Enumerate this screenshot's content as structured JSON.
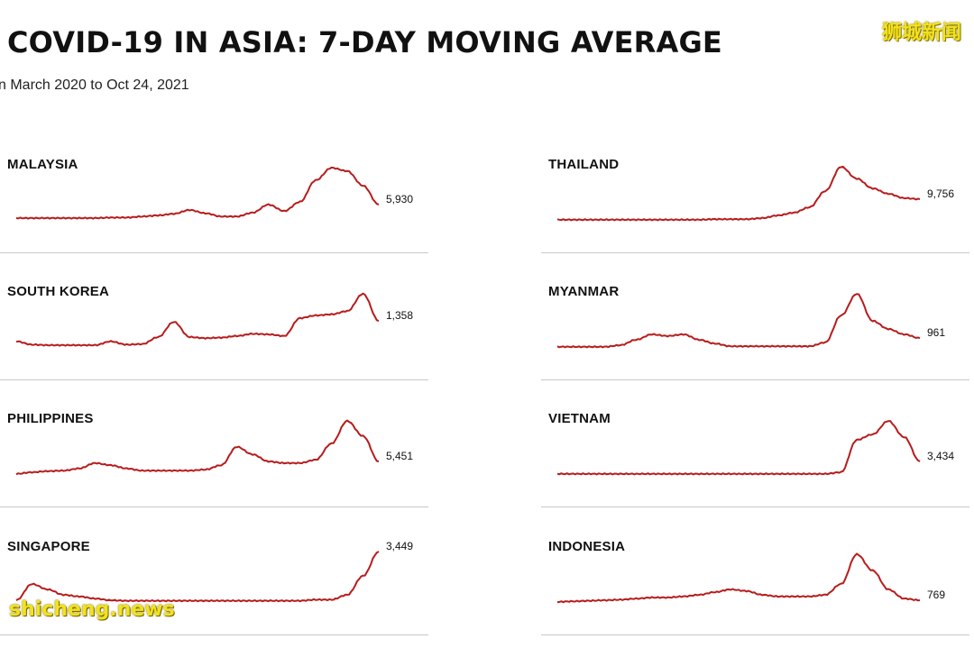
{
  "title": "COVID-19 IN ASIA: 7-DAY MOVING AVERAGE",
  "subtitle": "n March 2020 to Oct 24, 2021",
  "watermark_top": "狮城新闻",
  "watermark_bottom": "shicheng.news",
  "colors": {
    "line": "#b71c1c",
    "rule": "#c8c8c8",
    "watermark": "#f2e21c"
  },
  "chart_data": [
    {
      "type": "line",
      "country": "MALAYSIA",
      "last_value_label": "5,930",
      "series": [
        {
          "values": [
            0.05,
            0.05,
            0.05,
            0.05,
            0.05,
            0.05,
            0.06,
            0.06,
            0.08,
            0.1,
            0.13,
            0.2,
            0.14,
            0.08,
            0.08,
            0.15,
            0.3,
            0.18,
            0.35,
            0.75,
            0.98,
            0.92,
            0.65,
            0.3
          ]
        }
      ]
    },
    {
      "type": "line",
      "country": "SOUTH KOREA",
      "last_value_label": "1,358",
      "series": [
        {
          "values": [
            0.12,
            0.06,
            0.05,
            0.05,
            0.05,
            0.05,
            0.12,
            0.06,
            0.07,
            0.2,
            0.48,
            0.2,
            0.18,
            0.19,
            0.22,
            0.26,
            0.25,
            0.22,
            0.55,
            0.6,
            0.62,
            0.68,
            1.0,
            0.5
          ]
        }
      ]
    },
    {
      "type": "line",
      "country": "PHILIPPINES",
      "last_value_label": "5,451",
      "series": [
        {
          "values": [
            0.02,
            0.05,
            0.07,
            0.08,
            0.12,
            0.22,
            0.18,
            0.12,
            0.08,
            0.08,
            0.08,
            0.08,
            0.1,
            0.18,
            0.52,
            0.38,
            0.25,
            0.22,
            0.22,
            0.28,
            0.58,
            1.0,
            0.72,
            0.25
          ]
        }
      ]
    },
    {
      "type": "line",
      "country": "SINGAPORE",
      "last_value_label": "3,449",
      "series": [
        {
          "values": [
            0.05,
            0.35,
            0.25,
            0.15,
            0.12,
            0.08,
            0.05,
            0.04,
            0.04,
            0.04,
            0.04,
            0.04,
            0.04,
            0.04,
            0.04,
            0.04,
            0.04,
            0.04,
            0.04,
            0.06,
            0.06,
            0.15,
            0.5,
            0.95
          ]
        }
      ]
    },
    {
      "type": "line",
      "country": "THAILAND",
      "last_value_label": "9,756",
      "series": [
        {
          "values": [
            0.02,
            0.02,
            0.02,
            0.02,
            0.02,
            0.02,
            0.02,
            0.02,
            0.02,
            0.02,
            0.03,
            0.03,
            0.03,
            0.05,
            0.1,
            0.15,
            0.25,
            0.55,
            1.0,
            0.78,
            0.6,
            0.5,
            0.42,
            0.4
          ]
        }
      ]
    },
    {
      "type": "line",
      "country": "MYANMAR",
      "last_value_label": "961",
      "series": [
        {
          "values": [
            0.02,
            0.02,
            0.02,
            0.02,
            0.05,
            0.15,
            0.25,
            0.22,
            0.25,
            0.15,
            0.08,
            0.03,
            0.03,
            0.03,
            0.03,
            0.03,
            0.03,
            0.1,
            0.6,
            1.0,
            0.5,
            0.35,
            0.25,
            0.18
          ]
        }
      ]
    },
    {
      "type": "line",
      "country": "VIETNAM",
      "last_value_label": "3,434",
      "series": [
        {
          "values": [
            0.02,
            0.02,
            0.02,
            0.02,
            0.02,
            0.02,
            0.02,
            0.02,
            0.02,
            0.02,
            0.02,
            0.02,
            0.02,
            0.02,
            0.02,
            0.02,
            0.02,
            0.02,
            0.05,
            0.65,
            0.75,
            1.0,
            0.7,
            0.25
          ]
        }
      ]
    },
    {
      "type": "line",
      "country": "INDONESIA",
      "last_value_label": "769",
      "series": [
        {
          "values": [
            0.02,
            0.03,
            0.04,
            0.05,
            0.06,
            0.08,
            0.1,
            0.1,
            0.12,
            0.15,
            0.2,
            0.25,
            0.22,
            0.15,
            0.12,
            0.12,
            0.12,
            0.15,
            0.35,
            0.9,
            0.6,
            0.25,
            0.08,
            0.05
          ]
        }
      ]
    }
  ]
}
